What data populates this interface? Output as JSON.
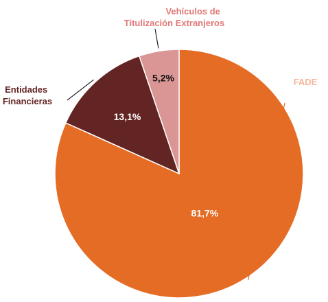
{
  "chart_data": {
    "type": "pie",
    "title": "",
    "slices": [
      {
        "name": "FADE",
        "value": 81.7,
        "label": "81,7%",
        "color": "#E46C25",
        "label_color": "#F5B89A",
        "value_label_color": "#FFFFFF",
        "category_lines": [
          "FADE"
        ]
      },
      {
        "name": "Entidades Financieras",
        "value": 13.1,
        "label": "13,1%",
        "color": "#632523",
        "label_color": "#632523",
        "value_label_color": "#FFFFFF",
        "category_lines": [
          "Entidades",
          "Financieras"
        ]
      },
      {
        "name": "Vehículos de Titulización Extranjeros",
        "value": 5.2,
        "label": "5,2%",
        "color": "#D99694",
        "label_color": "#E07876",
        "value_label_color": "#111111",
        "category_lines": [
          "Vehículos de",
          "Titulización Extranjeros"
        ]
      }
    ],
    "start_angle_deg": 0,
    "direction": "clockwise",
    "legend": "none",
    "labels": "outside-with-leader-lines"
  }
}
